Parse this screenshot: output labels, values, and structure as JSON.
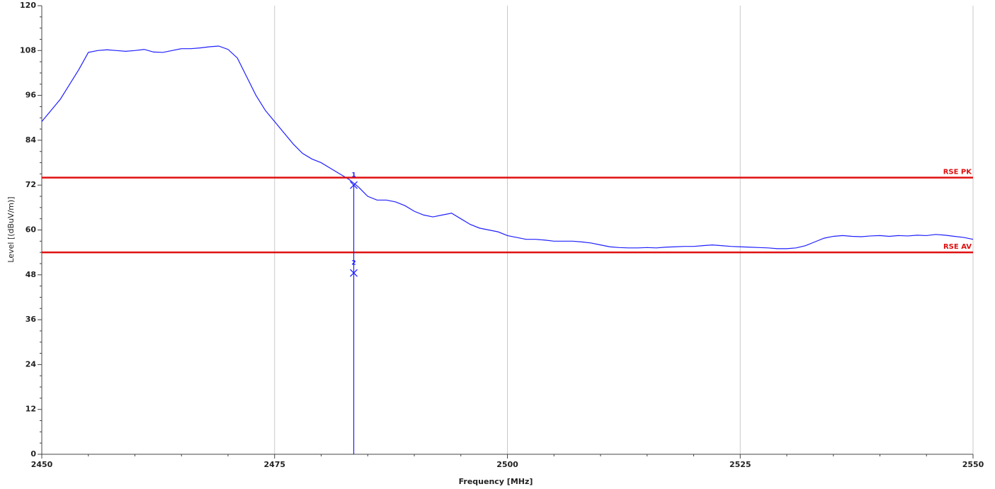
{
  "chart_data": {
    "type": "line",
    "xlabel": "Frequency [MHz]",
    "ylabel": "Level [(dBuV/m)]",
    "xlim": [
      2450,
      2550
    ],
    "ylim": [
      0,
      120
    ],
    "xticks": [
      2450,
      2475,
      2500,
      2525,
      2550
    ],
    "yticks": [
      0,
      12,
      24,
      36,
      48,
      60,
      72,
      84,
      96,
      108,
      120
    ],
    "grid": "x",
    "x": [
      2450,
      2451,
      2452,
      2453,
      2454,
      2455,
      2456,
      2457,
      2458,
      2459,
      2460,
      2461,
      2462,
      2463,
      2464,
      2465,
      2466,
      2467,
      2468,
      2469,
      2470,
      2471,
      2472,
      2473,
      2474,
      2475,
      2476,
      2477,
      2478,
      2479,
      2480,
      2481,
      2482,
      2483,
      2484,
      2485,
      2486,
      2487,
      2488,
      2489,
      2490,
      2491,
      2492,
      2493,
      2494,
      2495,
      2496,
      2497,
      2498,
      2499,
      2500,
      2501,
      2502,
      2503,
      2504,
      2505,
      2506,
      2507,
      2508,
      2509,
      2510,
      2511,
      2512,
      2513,
      2514,
      2515,
      2516,
      2517,
      2518,
      2519,
      2520,
      2521,
      2522,
      2523,
      2524,
      2525,
      2526,
      2527,
      2528,
      2529,
      2530,
      2531,
      2532,
      2533,
      2534,
      2535,
      2536,
      2537,
      2538,
      2539,
      2540,
      2541,
      2542,
      2543,
      2544,
      2545,
      2546,
      2547,
      2548,
      2549,
      2550
    ],
    "series": [
      {
        "color": "#1f1fff",
        "values": [
          89,
          92,
          95,
          99,
          103,
          107.5,
          108,
          108.2,
          108,
          107.8,
          108,
          108.3,
          107.6,
          107.5,
          108,
          108.5,
          108.5,
          108.7,
          109,
          109.2,
          108.3,
          106,
          101,
          96,
          92,
          89,
          86,
          83,
          80.5,
          79,
          78,
          76.5,
          75,
          73.5,
          71.5,
          69,
          68,
          68,
          67.5,
          66.5,
          65,
          64,
          63.5,
          64,
          64.5,
          63,
          61.5,
          60.5,
          60,
          59.5,
          58.5,
          58,
          57.5,
          57.5,
          57.3,
          57,
          57,
          57,
          56.8,
          56.5,
          56,
          55.5,
          55.3,
          55.2,
          55.2,
          55.3,
          55.2,
          55.4,
          55.5,
          55.6,
          55.6,
          55.8,
          56,
          55.8,
          55.6,
          55.5,
          55.4,
          55.3,
          55.2,
          55,
          55,
          55.2,
          55.8,
          56.8,
          57.8,
          58.3,
          58.5,
          58.3,
          58.2,
          58.4,
          58.5,
          58.3,
          58.5,
          58.4,
          58.6,
          58.5,
          58.8,
          58.6,
          58.3,
          58,
          57.5
        ]
      }
    ],
    "limit_lines": [
      {
        "name": "RSE PK",
        "value": 74,
        "color": "#e01010"
      },
      {
        "name": "RSE AV",
        "value": 54,
        "color": "#e01010"
      }
    ],
    "markers": [
      {
        "label": "1",
        "x": 2483.5,
        "y": 72
      },
      {
        "label": "2",
        "x": 2483.5,
        "y": 48.5
      }
    ]
  }
}
